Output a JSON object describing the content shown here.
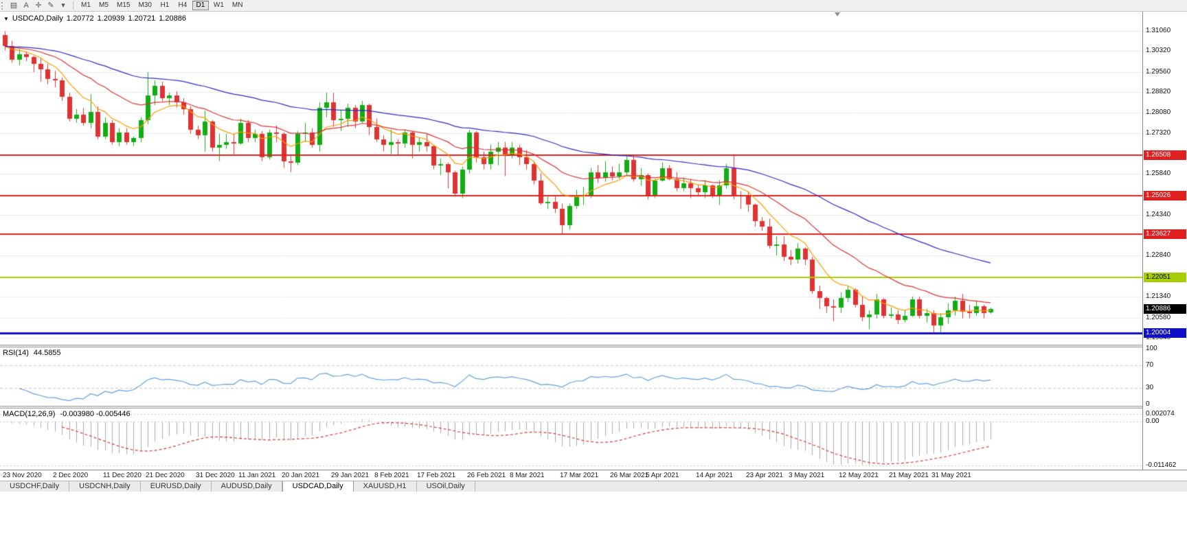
{
  "toolbar": {
    "icons": [
      {
        "name": "chart-windows-icon",
        "glyph": "▤"
      },
      {
        "name": "text-tool-icon",
        "glyph": "A"
      },
      {
        "name": "crosshair-icon",
        "glyph": "✛"
      },
      {
        "name": "draw-tools-icon",
        "glyph": "✎"
      },
      {
        "name": "dropdown-caret-icon",
        "glyph": "▾"
      }
    ],
    "timeframes": [
      "M1",
      "M5",
      "M15",
      "M30",
      "H1",
      "H4",
      "D1",
      "W1",
      "MN"
    ],
    "active_timeframe": "D1"
  },
  "chart_header": {
    "toggle_glyph": "▼",
    "symbol": "USDCAD,Daily",
    "open": "1.20772",
    "high": "1.20939",
    "low": "1.20721",
    "close": "1.20886"
  },
  "price_axis": {
    "ticks": [
      "1.31060",
      "1.30320",
      "1.29560",
      "1.28820",
      "1.28080",
      "1.27320",
      "1.25840",
      "1.24340",
      "1.22840",
      "1.21340",
      "1.20580",
      "1.19840"
    ]
  },
  "levels": [
    {
      "label": "1.26508",
      "value": 1.26508,
      "color": "#e02020",
      "text_color": "#ffffff",
      "width": 2
    },
    {
      "label": "1.25026",
      "value": 1.25026,
      "color": "#e02020",
      "text_color": "#ffffff",
      "width": 2
    },
    {
      "label": "1.23627",
      "value": 1.23627,
      "color": "#e02020",
      "text_color": "#ffffff",
      "width": 2
    },
    {
      "label": "1.22051",
      "value": 1.22051,
      "color": "#a6ce00",
      "text_color": "#000000",
      "width": 2
    },
    {
      "label": "1.20004",
      "value": 1.20004,
      "color": "#0f0fc8",
      "text_color": "#ffffff",
      "width": 3
    }
  ],
  "current_price": {
    "label": "1.20886",
    "value": 1.20886,
    "bg": "#000000",
    "text_color": "#ffffff"
  },
  "time_axis": {
    "labels": [
      {
        "text": "23 Nov 2020",
        "index": 0
      },
      {
        "text": "2 Dec 2020",
        "index": 7
      },
      {
        "text": "11 Dec 2020",
        "index": 14
      },
      {
        "text": "21 Dec 2020",
        "index": 20
      },
      {
        "text": "31 Dec 2020",
        "index": 27
      },
      {
        "text": "11 Jan 2021",
        "index": 33
      },
      {
        "text": "20 Jan 2021",
        "index": 39
      },
      {
        "text": "29 Jan 2021",
        "index": 46
      },
      {
        "text": "8 Feb 2021",
        "index": 52
      },
      {
        "text": "17 Feb 2021",
        "index": 58
      },
      {
        "text": "26 Feb 2021",
        "index": 65
      },
      {
        "text": "8 Mar 2021",
        "index": 71
      },
      {
        "text": "17 Mar 2021",
        "index": 78
      },
      {
        "text": "26 Mar 2021",
        "index": 85
      },
      {
        "text": "5 Apr 2021",
        "index": 90
      },
      {
        "text": "14 Apr 2021",
        "index": 97
      },
      {
        "text": "23 Apr 2021",
        "index": 104
      },
      {
        "text": "3 May 2021",
        "index": 110
      },
      {
        "text": "12 May 2021",
        "index": 117
      },
      {
        "text": "21 May 2021",
        "index": 124
      },
      {
        "text": "31 May 2021",
        "index": 130
      }
    ]
  },
  "rsi": {
    "name": "RSI(14)",
    "value": "44.5855",
    "period": 14,
    "line_color": "#5f9fdc",
    "axis_labels": [
      {
        "text": "100",
        "value": 100
      },
      {
        "text": "70",
        "value": 70
      },
      {
        "text": "30",
        "value": 30
      },
      {
        "text": "0",
        "value": 0
      }
    ]
  },
  "macd": {
    "name": "MACD(12,26,9)",
    "values": "-0.003980 -0.005446",
    "fast": 12,
    "slow": 26,
    "signal": 9,
    "hist_color": "#a9a9a9",
    "signal_color": "#e03131",
    "range": [
      0.0035,
      -0.0125
    ],
    "axis_labels": [
      {
        "text": "0.002074",
        "value": 0.002074
      },
      {
        "text": "0.00",
        "value": 0
      },
      {
        "text": "-0.011462",
        "value": -0.011462
      }
    ]
  },
  "tabs": {
    "items": [
      "USDCHF,Daily",
      "USDCNH,Daily",
      "EURUSD,Daily",
      "AUDUSD,Daily",
      "USDCAD,Daily",
      "XAUUSD,H1",
      "USOil,Daily"
    ],
    "active": "USDCAD,Daily"
  },
  "chart_data": {
    "type": "candlestick",
    "symbol": "USDCAD",
    "timeframe": "Daily",
    "y_range": [
      1.19589,
      1.31763
    ],
    "up_color": "#12ad12",
    "down_color": "#e03232",
    "moving_averages": [
      {
        "period": 8,
        "method": "ema",
        "color": "#ff9900"
      },
      {
        "period": 21,
        "method": "ema",
        "color": "#dd3030"
      },
      {
        "period": 55,
        "method": "ema",
        "color": "#2929c8"
      }
    ],
    "ohlc": [
      [
        1.309,
        1.3105,
        1.3035,
        1.305
      ],
      [
        1.305,
        1.307,
        1.299,
        1.3
      ],
      [
        1.3,
        1.304,
        1.298,
        1.302
      ],
      [
        1.302,
        1.303,
        1.2995,
        1.301
      ],
      [
        1.301,
        1.3015,
        1.2955,
        1.2985
      ],
      [
        1.2985,
        1.3005,
        1.292,
        1.2965
      ],
      [
        1.2965,
        1.2985,
        1.291,
        1.293
      ],
      [
        1.293,
        1.296,
        1.29,
        1.2925
      ],
      [
        1.2925,
        1.2935,
        1.285,
        1.2865
      ],
      [
        1.2865,
        1.288,
        1.2775,
        1.2785
      ],
      [
        1.2785,
        1.282,
        1.277,
        1.28
      ],
      [
        1.28,
        1.2825,
        1.276,
        1.277
      ],
      [
        1.277,
        1.2875,
        1.275,
        1.281
      ],
      [
        1.281,
        1.283,
        1.271,
        1.272
      ],
      [
        1.272,
        1.279,
        1.271,
        1.277
      ],
      [
        1.277,
        1.278,
        1.269,
        1.27
      ],
      [
        1.27,
        1.275,
        1.2685,
        1.2735
      ],
      [
        1.2735,
        1.275,
        1.269,
        1.27
      ],
      [
        1.27,
        1.272,
        1.2685,
        1.2715
      ],
      [
        1.2715,
        1.279,
        1.27,
        1.278
      ],
      [
        1.278,
        1.2955,
        1.2765,
        1.287
      ],
      [
        1.287,
        1.2925,
        1.2835,
        1.2905
      ],
      [
        1.2905,
        1.292,
        1.285,
        1.286
      ],
      [
        1.286,
        1.288,
        1.2835,
        1.287
      ],
      [
        1.287,
        1.2885,
        1.2825,
        1.2845
      ],
      [
        1.2845,
        1.286,
        1.28,
        1.282
      ],
      [
        1.282,
        1.283,
        1.273,
        1.2745
      ],
      [
        1.2745,
        1.276,
        1.271,
        1.2725
      ],
      [
        1.2725,
        1.2815,
        1.2665,
        1.2775
      ],
      [
        1.2775,
        1.278,
        1.2665,
        1.268
      ],
      [
        1.268,
        1.273,
        1.263,
        1.269
      ],
      [
        1.269,
        1.273,
        1.2675,
        1.27
      ],
      [
        1.27,
        1.273,
        1.2655,
        1.2695
      ],
      [
        1.2695,
        1.2785,
        1.269,
        1.277
      ],
      [
        1.277,
        1.278,
        1.27,
        1.2715
      ],
      [
        1.2715,
        1.2745,
        1.27,
        1.273
      ],
      [
        1.273,
        1.274,
        1.263,
        1.2645
      ],
      [
        1.2645,
        1.2745,
        1.2635,
        1.2735
      ],
      [
        1.2735,
        1.276,
        1.27,
        1.273
      ],
      [
        1.273,
        1.2735,
        1.2605,
        1.263
      ],
      [
        1.263,
        1.2655,
        1.259,
        1.2625
      ],
      [
        1.2625,
        1.274,
        1.2615,
        1.273
      ],
      [
        1.273,
        1.277,
        1.27,
        1.2735
      ],
      [
        1.2735,
        1.275,
        1.268,
        1.269
      ],
      [
        1.269,
        1.2845,
        1.2665,
        1.2825
      ],
      [
        1.2825,
        1.288,
        1.279,
        1.2845
      ],
      [
        1.2845,
        1.288,
        1.2755,
        1.278
      ],
      [
        1.278,
        1.2815,
        1.274,
        1.2785
      ],
      [
        1.2785,
        1.284,
        1.2755,
        1.2825
      ],
      [
        1.2825,
        1.2835,
        1.275,
        1.2775
      ],
      [
        1.2775,
        1.285,
        1.277,
        1.2835
      ],
      [
        1.2835,
        1.284,
        1.2725,
        1.2755
      ],
      [
        1.2755,
        1.2785,
        1.27,
        1.271
      ],
      [
        1.271,
        1.2725,
        1.2665,
        1.269
      ],
      [
        1.269,
        1.2745,
        1.2655,
        1.27
      ],
      [
        1.27,
        1.271,
        1.265,
        1.2695
      ],
      [
        1.2695,
        1.2745,
        1.268,
        1.2735
      ],
      [
        1.2735,
        1.274,
        1.264,
        1.269
      ],
      [
        1.269,
        1.2715,
        1.2665,
        1.27
      ],
      [
        1.27,
        1.273,
        1.2665,
        1.2685
      ],
      [
        1.2685,
        1.269,
        1.26,
        1.2615
      ],
      [
        1.2615,
        1.264,
        1.258,
        1.262
      ],
      [
        1.262,
        1.2625,
        1.253,
        1.259
      ],
      [
        1.259,
        1.2595,
        1.25,
        1.251
      ],
      [
        1.251,
        1.261,
        1.2495,
        1.26
      ],
      [
        1.26,
        1.2745,
        1.2585,
        1.2735
      ],
      [
        1.2735,
        1.274,
        1.2625,
        1.2645
      ],
      [
        1.2645,
        1.2665,
        1.26,
        1.262
      ],
      [
        1.262,
        1.269,
        1.26,
        1.2665
      ],
      [
        1.2665,
        1.27,
        1.2615,
        1.268
      ],
      [
        1.268,
        1.27,
        1.2575,
        1.2655
      ],
      [
        1.2655,
        1.27,
        1.264,
        1.268
      ],
      [
        1.268,
        1.269,
        1.2615,
        1.2645
      ],
      [
        1.2645,
        1.267,
        1.26,
        1.262
      ],
      [
        1.262,
        1.263,
        1.2545,
        1.256
      ],
      [
        1.256,
        1.2585,
        1.247,
        1.2475
      ],
      [
        1.2475,
        1.25,
        1.2455,
        1.248
      ],
      [
        1.248,
        1.2505,
        1.244,
        1.2455
      ],
      [
        1.2455,
        1.2475,
        1.2365,
        1.2395
      ],
      [
        1.2395,
        1.2475,
        1.238,
        1.2465
      ],
      [
        1.2465,
        1.2525,
        1.2455,
        1.25
      ],
      [
        1.25,
        1.2535,
        1.247,
        1.2505
      ],
      [
        1.2505,
        1.2605,
        1.2495,
        1.259
      ],
      [
        1.259,
        1.2615,
        1.255,
        1.257
      ],
      [
        1.257,
        1.263,
        1.2555,
        1.259
      ],
      [
        1.259,
        1.261,
        1.256,
        1.2575
      ],
      [
        1.2575,
        1.262,
        1.2565,
        1.259
      ],
      [
        1.259,
        1.265,
        1.2575,
        1.2635
      ],
      [
        1.2635,
        1.265,
        1.2555,
        1.2565
      ],
      [
        1.2565,
        1.2605,
        1.254,
        1.258
      ],
      [
        1.258,
        1.2585,
        1.249,
        1.2505
      ],
      [
        1.2505,
        1.2565,
        1.2495,
        1.256
      ],
      [
        1.256,
        1.2625,
        1.2555,
        1.2605
      ],
      [
        1.2605,
        1.2615,
        1.256,
        1.2565
      ],
      [
        1.2565,
        1.259,
        1.252,
        1.253
      ],
      [
        1.253,
        1.257,
        1.252,
        1.255
      ],
      [
        1.255,
        1.2565,
        1.2495,
        1.253
      ],
      [
        1.253,
        1.2545,
        1.25,
        1.2515
      ],
      [
        1.2515,
        1.256,
        1.2495,
        1.254
      ],
      [
        1.254,
        1.2545,
        1.2495,
        1.2505
      ],
      [
        1.2505,
        1.256,
        1.247,
        1.254
      ],
      [
        1.254,
        1.262,
        1.253,
        1.2605
      ],
      [
        1.2605,
        1.2655,
        1.249,
        1.2505
      ],
      [
        1.2505,
        1.252,
        1.2455,
        1.25
      ],
      [
        1.25,
        1.252,
        1.2445,
        1.247
      ],
      [
        1.247,
        1.2475,
        1.239,
        1.241
      ],
      [
        1.241,
        1.2425,
        1.2375,
        1.239
      ],
      [
        1.239,
        1.242,
        1.231,
        1.232
      ],
      [
        1.232,
        1.2355,
        1.2285,
        1.2325
      ],
      [
        1.2325,
        1.2355,
        1.2265,
        1.228
      ],
      [
        1.228,
        1.2305,
        1.225,
        1.227
      ],
      [
        1.227,
        1.233,
        1.2255,
        1.231
      ],
      [
        1.231,
        1.2315,
        1.225,
        1.227
      ],
      [
        1.227,
        1.228,
        1.2145,
        1.2155
      ],
      [
        1.2155,
        1.2175,
        1.209,
        1.213
      ],
      [
        1.213,
        1.2135,
        1.2075,
        1.21
      ],
      [
        1.21,
        1.2125,
        1.2045,
        1.2095
      ],
      [
        1.2095,
        1.215,
        1.2075,
        1.213
      ],
      [
        1.213,
        1.2175,
        1.2115,
        1.216
      ],
      [
        1.216,
        1.2165,
        1.2095,
        1.2105
      ],
      [
        1.2105,
        1.2135,
        1.2045,
        1.206
      ],
      [
        1.206,
        1.2085,
        1.2015,
        1.207
      ],
      [
        1.207,
        1.2145,
        1.2055,
        1.2125
      ],
      [
        1.2125,
        1.213,
        1.2055,
        1.2065
      ],
      [
        1.2065,
        1.2095,
        1.2055,
        1.207
      ],
      [
        1.207,
        1.2085,
        1.2035,
        1.205
      ],
      [
        1.205,
        1.2085,
        1.204,
        1.2065
      ],
      [
        1.2065,
        1.2135,
        1.206,
        1.2125
      ],
      [
        1.2125,
        1.2135,
        1.2055,
        1.2065
      ],
      [
        1.2065,
        1.209,
        1.204,
        1.2075
      ],
      [
        1.2075,
        1.2085,
        1.2005,
        1.203
      ],
      [
        1.203,
        1.2075,
        1.2005,
        1.206
      ],
      [
        1.206,
        1.211,
        1.2035,
        1.2085
      ],
      [
        1.2085,
        1.2135,
        1.2065,
        1.212
      ],
      [
        1.212,
        1.2145,
        1.2055,
        1.208
      ],
      [
        1.208,
        1.2105,
        1.2055,
        1.2075
      ],
      [
        1.2075,
        1.212,
        1.2065,
        1.21
      ],
      [
        1.21,
        1.2105,
        1.2055,
        1.2075
      ],
      [
        1.20772,
        1.20939,
        1.20721,
        1.20886
      ]
    ]
  }
}
